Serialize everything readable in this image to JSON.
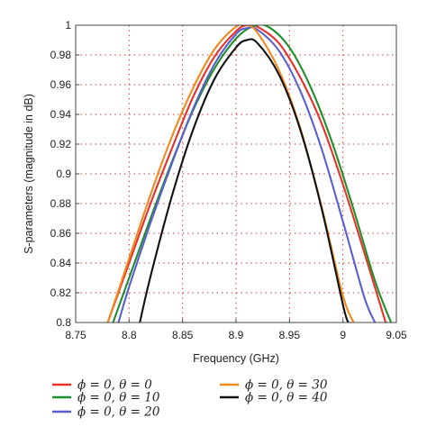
{
  "chart_data": {
    "type": "line",
    "title": "",
    "xlabel": "Frequency (GHz)",
    "ylabel": "S-parameters (magnitude in dB)",
    "xlim": [
      8.75,
      9.05
    ],
    "ylim": [
      0.8,
      1.0
    ],
    "xticks": [
      "8.75",
      "8.8",
      "8.85",
      "8.9",
      "8.95",
      "9",
      "9.05"
    ],
    "yticks": [
      "0.8",
      "0.82",
      "0.84",
      "0.86",
      "0.88",
      "0.9",
      "0.92",
      "0.94",
      "0.96",
      "0.98",
      "1"
    ],
    "grid": true,
    "legend_position": "bottom",
    "series": [
      {
        "name": "ϕ = 0, θ = 0",
        "color": "#e8312a",
        "x": [
          8.78,
          8.8,
          8.82,
          8.84,
          8.86,
          8.88,
          8.9,
          8.91,
          8.92,
          8.94,
          8.96,
          8.98,
          9.0,
          9.02,
          9.04
        ],
        "y": [
          0.8,
          0.84,
          0.88,
          0.917,
          0.952,
          0.979,
          0.996,
          1.0,
          0.999,
          0.988,
          0.965,
          0.934,
          0.893,
          0.847,
          0.8
        ]
      },
      {
        "name": "ϕ = 0, θ = 10",
        "color": "#1e8f2a",
        "x": [
          8.785,
          8.8,
          8.82,
          8.84,
          8.86,
          8.88,
          8.9,
          8.915,
          8.93,
          8.95,
          8.97,
          8.99,
          9.01,
          9.03,
          9.045
        ],
        "y": [
          0.8,
          0.83,
          0.87,
          0.908,
          0.943,
          0.971,
          0.991,
          0.999,
          0.999,
          0.985,
          0.958,
          0.921,
          0.876,
          0.828,
          0.8
        ]
      },
      {
        "name": "ϕ = 0, θ = 20",
        "color": "#5a5fd0",
        "x": [
          8.79,
          8.8,
          8.82,
          8.84,
          8.86,
          8.88,
          8.9,
          8.91,
          8.92,
          8.94,
          8.96,
          8.98,
          9.0,
          9.02,
          9.03
        ],
        "y": [
          0.8,
          0.824,
          0.867,
          0.907,
          0.944,
          0.974,
          0.994,
          0.998,
          0.997,
          0.983,
          0.956,
          0.917,
          0.868,
          0.817,
          0.8
        ]
      },
      {
        "name": "ϕ = 0, θ = 30",
        "color": "#f08a1e",
        "x": [
          8.78,
          8.8,
          8.82,
          8.84,
          8.86,
          8.88,
          8.9,
          8.91,
          8.92,
          8.94,
          8.96,
          8.98,
          9.0,
          9.01
        ],
        "y": [
          0.8,
          0.843,
          0.886,
          0.925,
          0.958,
          0.984,
          0.999,
          1.0,
          0.995,
          0.97,
          0.931,
          0.878,
          0.818,
          0.8
        ]
      },
      {
        "name": "ϕ = 0, θ = 40",
        "color": "#111111",
        "x": [
          8.81,
          8.82,
          8.84,
          8.86,
          8.88,
          8.9,
          8.91,
          8.92,
          8.94,
          8.96,
          8.98,
          9.0,
          9.005
        ],
        "y": [
          0.8,
          0.831,
          0.885,
          0.93,
          0.964,
          0.985,
          0.99,
          0.988,
          0.967,
          0.93,
          0.877,
          0.812,
          0.8
        ]
      }
    ]
  }
}
